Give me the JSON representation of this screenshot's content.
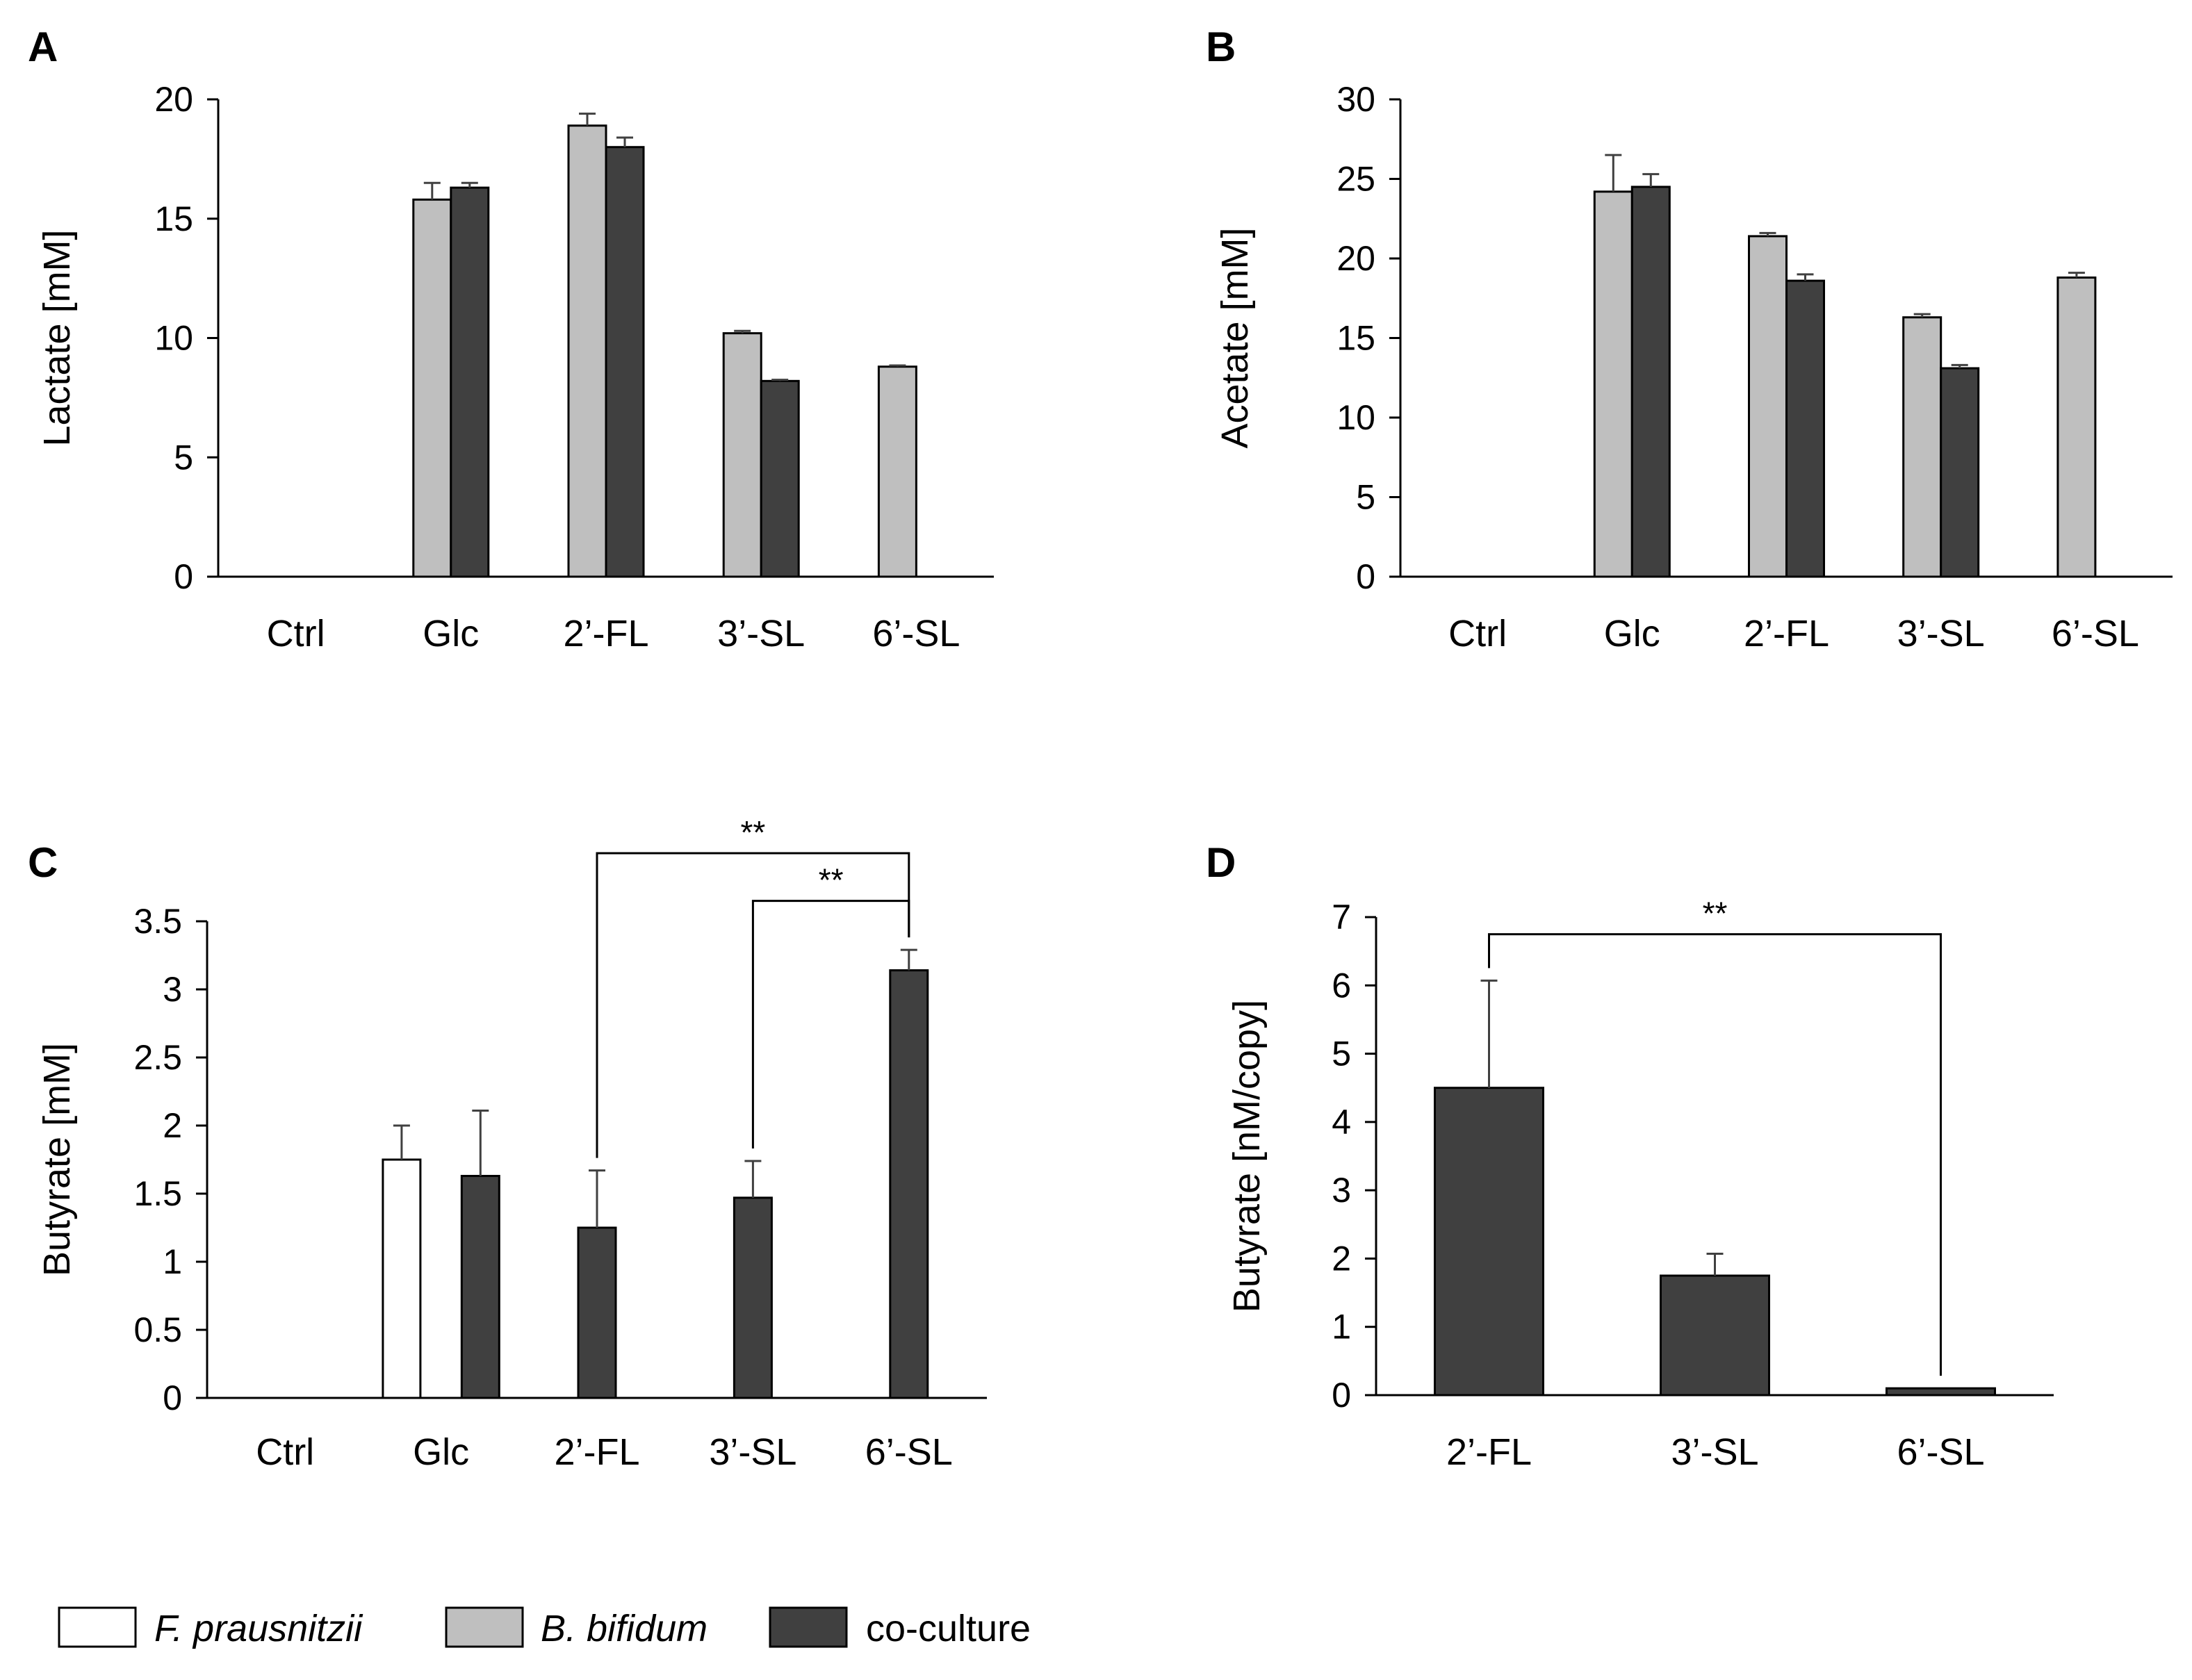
{
  "colors": {
    "f_prausnitzii": "#ffffff",
    "b_bifidum": "#bfbfbf",
    "co_culture": "#404040",
    "axis": "#000000",
    "error_bar": "#404040"
  },
  "legend": {
    "items": [
      {
        "label": "F. prausnitzii",
        "italic": true,
        "color": "#ffffff"
      },
      {
        "label": "B. bifidum",
        "italic": true,
        "color": "#bfbfbf"
      },
      {
        "label": "co-culture",
        "italic": false,
        "color": "#404040"
      }
    ]
  },
  "chart_data": [
    {
      "panel": "A",
      "type": "bar",
      "ylabel": "Lactate [mM]",
      "ylim": [
        0,
        20
      ],
      "yticks": [
        0,
        5,
        10,
        15,
        20
      ],
      "ytick_labels": [
        "0",
        "5",
        "10",
        "15",
        "20"
      ],
      "categories": [
        "Ctrl",
        "Glc",
        "2’-FL",
        "3’-SL",
        "6’-SL"
      ],
      "series": [
        {
          "name": "B. bifidum",
          "values": [
            null,
            15.8,
            18.9,
            10.2,
            8.8
          ],
          "errors": [
            null,
            0.7,
            0.5,
            0.1,
            0.05
          ]
        },
        {
          "name": "co-culture",
          "values": [
            null,
            16.3,
            18.0,
            8.2,
            null
          ],
          "errors": [
            null,
            0.2,
            0.4,
            0.05,
            null
          ]
        }
      ],
      "significance": []
    },
    {
      "panel": "B",
      "type": "bar",
      "ylabel": "Acetate [mM]",
      "ylim": [
        0,
        30
      ],
      "yticks": [
        0,
        5,
        10,
        15,
        20,
        25,
        30
      ],
      "ytick_labels": [
        "0",
        "5",
        "10",
        "15",
        "20",
        "25",
        "30"
      ],
      "categories": [
        "Ctrl",
        "Glc",
        "2’-FL",
        "3’-SL",
        "6’-SL"
      ],
      "series": [
        {
          "name": "B. bifidum",
          "values": [
            null,
            24.2,
            21.4,
            16.3,
            18.8
          ],
          "errors": [
            null,
            2.3,
            0.2,
            0.2,
            0.3
          ]
        },
        {
          "name": "co-culture",
          "values": [
            null,
            24.5,
            18.6,
            13.1,
            null
          ],
          "errors": [
            null,
            0.8,
            0.4,
            0.2,
            null
          ]
        }
      ],
      "significance": []
    },
    {
      "panel": "C",
      "type": "bar",
      "ylabel": "Butyrate [mM]",
      "ylim": [
        0,
        3.5
      ],
      "yticks": [
        0,
        0.5,
        1,
        1.5,
        2,
        2.5,
        3,
        3.5
      ],
      "ytick_labels": [
        "0",
        "0.5",
        "1",
        "1.5",
        "2",
        "2.5",
        "3",
        "3.5"
      ],
      "categories": [
        "Ctrl",
        "Glc",
        "2’-FL",
        "3’-SL",
        "6’-SL"
      ],
      "series": [
        {
          "name": "F. prausnitzii",
          "values": [
            null,
            1.75,
            null,
            null,
            null
          ],
          "errors": [
            null,
            0.25,
            null,
            null,
            null
          ]
        },
        {
          "name": "co-culture",
          "values": [
            null,
            1.63,
            1.25,
            1.47,
            3.14
          ],
          "errors": [
            null,
            0.48,
            0.42,
            0.27,
            0.15
          ]
        }
      ],
      "significance": [
        {
          "from": "2’-FL",
          "to": "6’-SL",
          "label": "**",
          "y": 4.0
        },
        {
          "from": "3’-SL",
          "to": "6’-SL",
          "label": "**",
          "y": 3.65
        }
      ]
    },
    {
      "panel": "D",
      "type": "bar",
      "ylabel": "Butyrate [nM/copy]",
      "ylim": [
        0,
        7
      ],
      "yticks": [
        0,
        1,
        2,
        3,
        4,
        5,
        6,
        7
      ],
      "ytick_labels": [
        "0",
        "1",
        "2",
        "3",
        "4",
        "5",
        "6",
        "7"
      ],
      "categories": [
        "2’-FL",
        "3’-SL",
        "6’-SL"
      ],
      "series": [
        {
          "name": "co-culture",
          "values": [
            4.5,
            1.75,
            0.1
          ],
          "errors": [
            1.57,
            0.32,
            0.0
          ]
        }
      ],
      "significance": [
        {
          "from": "2’-FL",
          "to": "6’-SL",
          "label": "**",
          "y": 6.75
        }
      ]
    }
  ]
}
